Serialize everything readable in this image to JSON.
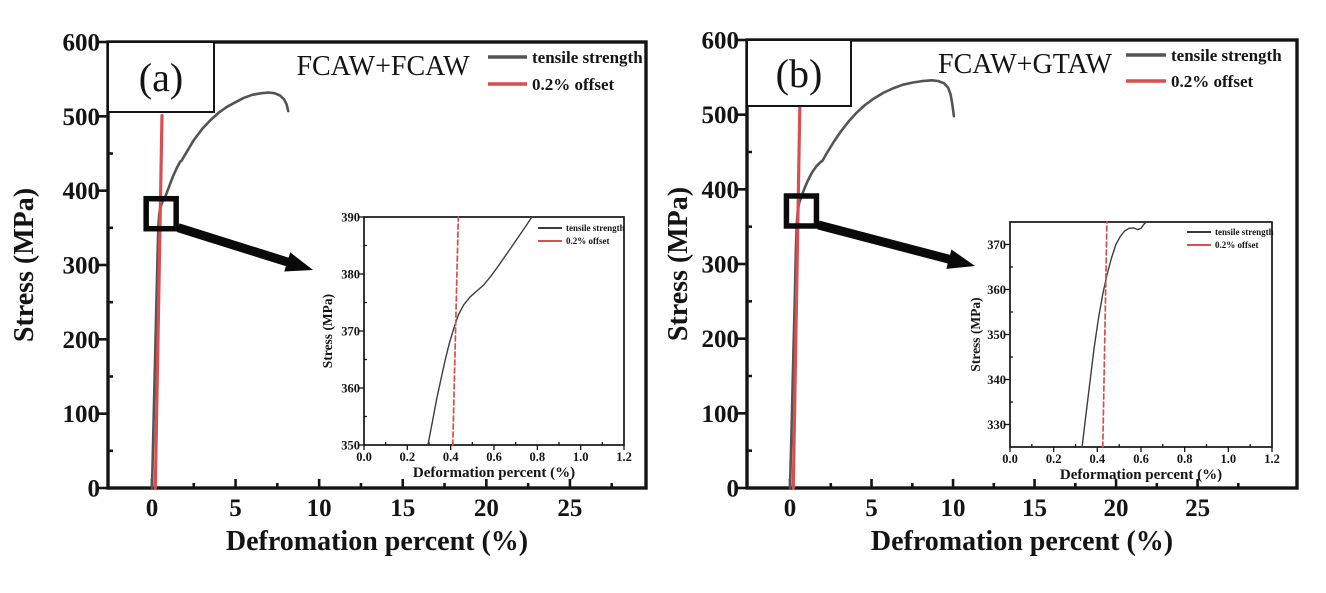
{
  "figure": {
    "background": "#ffffff",
    "axis_color": "#141414",
    "tensile_color": "#545456",
    "offset_color": "#d94f4f"
  },
  "chart_data": [
    {
      "type": "line",
      "panel_label": "(a)",
      "title": "FCAW+FCAW",
      "legend": {
        "position": "top-right",
        "entries": [
          {
            "label": "tensile strength",
            "color": "#545456"
          },
          {
            "label": "0.2% offset",
            "color": "#d94f4f"
          }
        ]
      },
      "main": {
        "xlabel": "Defromation percent (%)",
        "ylabel": "Stress (MPa)",
        "xlim": [
          -2.63,
          29.55
        ],
        "ylim": [
          0,
          600
        ],
        "grid": false,
        "xticks": {
          "values": [
            0,
            5,
            10,
            15,
            20,
            25
          ],
          "labels": [
            "0",
            "5",
            "10",
            "15",
            "20",
            "25"
          ],
          "minor": [
            2.5,
            7.5,
            12.5,
            17.5,
            22.5,
            27.5
          ]
        },
        "yticks": {
          "values": [
            0,
            100,
            200,
            300,
            400,
            500,
            600
          ],
          "labels": [
            "0",
            "100",
            "200",
            "300",
            "400",
            "500",
            "600"
          ],
          "minor": [
            50,
            150,
            250,
            350,
            450,
            550
          ]
        },
        "series": [
          {
            "name": "tensile strength",
            "color": "#545456",
            "style": "solid",
            "points": [
              [
                0,
                0
              ],
              [
                0.09,
                85
              ],
              [
                0.18,
                170
              ],
              [
                0.27,
                255
              ],
              [
                0.33,
                310
              ],
              [
                0.38,
                350
              ],
              [
                0.43,
                368
              ],
              [
                0.5,
                377
              ],
              [
                0.62,
                385
              ],
              [
                0.78,
                391
              ],
              [
                1.0,
                404
              ],
              [
                1.25,
                419
              ],
              [
                1.5,
                431
              ],
              [
                1.68,
                439
              ],
              [
                1.76,
                440
              ],
              [
                2.1,
                453
              ],
              [
                2.5,
                468
              ],
              [
                3.0,
                483
              ],
              [
                3.5,
                495
              ],
              [
                4.0,
                505
              ],
              [
                4.5,
                513
              ],
              [
                5.0,
                519
              ],
              [
                5.5,
                525
              ],
              [
                6.0,
                529
              ],
              [
                6.5,
                531
              ],
              [
                7.0,
                532
              ],
              [
                7.35,
                531
              ],
              [
                7.65,
                528
              ],
              [
                7.9,
                523
              ],
              [
                8.05,
                516
              ],
              [
                8.15,
                507
              ]
            ]
          },
          {
            "name": "0.2% offset",
            "color": "#d94f4f",
            "style": "solid",
            "points": [
              [
                0.2,
                0
              ],
              [
                0.6,
                501
              ]
            ]
          }
        ],
        "zoom_box": {
          "x": 0.55,
          "y": 369
        }
      },
      "inset": {
        "xlabel": "Deformation percent (%)",
        "ylabel": "Stress (MPa)",
        "xlim": [
          0,
          1.2
        ],
        "ylim": [
          350,
          390
        ],
        "xticks": {
          "values": [
            0,
            0.2,
            0.4,
            0.6,
            0.8,
            1.0,
            1.2
          ],
          "labels": [
            "0.0",
            "0.2",
            "0.4",
            "0.6",
            "0.8",
            "1.0",
            "1.2"
          ],
          "minor": [
            0.1,
            0.3,
            0.5,
            0.7,
            0.9,
            1.1
          ]
        },
        "yticks": {
          "values": [
            350,
            360,
            370,
            380,
            390
          ],
          "labels": [
            "350",
            "360",
            "370",
            "380",
            "390"
          ],
          "minor": [
            355,
            365,
            375,
            385
          ]
        },
        "legend": {
          "entries": [
            {
              "label": "tensile strength",
              "color": "#3d3d3d"
            },
            {
              "label": "0.2% offset",
              "color": "#d94f4f"
            }
          ]
        },
        "series": [
          {
            "name": "tensile strength",
            "color": "#3d3d3d",
            "style": "solid",
            "points": [
              [
                0.295,
                350
              ],
              [
                0.315,
                354
              ],
              [
                0.335,
                358
              ],
              [
                0.355,
                361.5
              ],
              [
                0.375,
                365
              ],
              [
                0.395,
                368
              ],
              [
                0.415,
                370.5
              ],
              [
                0.435,
                372.8
              ],
              [
                0.46,
                374.6
              ],
              [
                0.49,
                376
              ],
              [
                0.52,
                377
              ],
              [
                0.55,
                378
              ],
              [
                0.585,
                379.6
              ],
              [
                0.62,
                381.4
              ],
              [
                0.66,
                383.6
              ],
              [
                0.7,
                385.8
              ],
              [
                0.74,
                388
              ],
              [
                0.775,
                390
              ]
            ]
          },
          {
            "name": "0.2% offset",
            "color": "#d94f4f",
            "style": "dashed",
            "points": [
              [
                0.41,
                350
              ],
              [
                0.435,
                390
              ]
            ]
          }
        ]
      }
    },
    {
      "type": "line",
      "panel_label": "(b)",
      "title": "FCAW+GTAW",
      "legend": {
        "position": "top-right",
        "entries": [
          {
            "label": "tensile strength",
            "color": "#545456"
          },
          {
            "label": "0.2% offset",
            "color": "#d94f4f"
          }
        ]
      },
      "main": {
        "xlabel": "Defromation percent (%)",
        "ylabel": "Stress (MPa)",
        "xlim": [
          -2.64,
          31.1
        ],
        "ylim": [
          0,
          600
        ],
        "grid": false,
        "xticks": {
          "values": [
            0,
            5,
            10,
            15,
            20,
            25
          ],
          "labels": [
            "0",
            "5",
            "10",
            "15",
            "20",
            "25"
          ],
          "minor": [
            2.5,
            7.5,
            12.5,
            17.5,
            22.5,
            27.5
          ]
        },
        "yticks": {
          "values": [
            0,
            100,
            200,
            300,
            400,
            500,
            600
          ],
          "labels": [
            "0",
            "100",
            "200",
            "300",
            "400",
            "500",
            "600"
          ],
          "minor": [
            50,
            150,
            250,
            350,
            450,
            550
          ]
        },
        "series": [
          {
            "name": "tensile strength",
            "color": "#545456",
            "style": "solid",
            "points": [
              [
                0,
                0
              ],
              [
                0.09,
                75
              ],
              [
                0.19,
                165
              ],
              [
                0.29,
                255
              ],
              [
                0.36,
                320
              ],
              [
                0.42,
                357
              ],
              [
                0.48,
                373
              ],
              [
                0.56,
                382
              ],
              [
                0.72,
                392
              ],
              [
                0.92,
                403
              ],
              [
                1.12,
                413
              ],
              [
                1.36,
                423
              ],
              [
                1.62,
                431
              ],
              [
                1.9,
                437
              ],
              [
                1.98,
                438
              ],
              [
                2.3,
                450
              ],
              [
                2.7,
                464
              ],
              [
                3.1,
                477
              ],
              [
                3.6,
                491
              ],
              [
                4.1,
                503
              ],
              [
                4.6,
                513
              ],
              [
                5.1,
                521
              ],
              [
                5.7,
                529
              ],
              [
                6.3,
                535
              ],
              [
                6.9,
                540
              ],
              [
                7.5,
                543
              ],
              [
                8.1,
                545
              ],
              [
                8.7,
                546
              ],
              [
                9.1,
                545
              ],
              [
                9.45,
                542
              ],
              [
                9.7,
                536
              ],
              [
                9.85,
                527
              ],
              [
                9.95,
                515
              ],
              [
                10.05,
                498
              ]
            ]
          },
          {
            "name": "0.2% offset",
            "color": "#d94f4f",
            "style": "solid",
            "points": [
              [
                0.2,
                0
              ],
              [
                0.6,
                510
              ]
            ]
          }
        ],
        "zoom_box": {
          "x": 0.7,
          "y": 371
        }
      },
      "inset": {
        "xlabel": "Deformation percent (%)",
        "ylabel": "Stress (MPa)",
        "xlim": [
          0,
          1.2
        ],
        "ylim": [
          325,
          375
        ],
        "xticks": {
          "values": [
            0,
            0.2,
            0.4,
            0.6,
            0.8,
            1.0,
            1.2
          ],
          "labels": [
            "0.0",
            "0.2",
            "0.4",
            "0.6",
            "0.8",
            "1.0",
            "1.2"
          ],
          "minor": [
            0.1,
            0.3,
            0.5,
            0.7,
            0.9,
            1.1
          ]
        },
        "yticks": {
          "values": [
            330,
            340,
            350,
            360,
            370
          ],
          "labels": [
            "330",
            "340",
            "350",
            "360",
            "370"
          ],
          "minor": [
            335,
            345,
            355,
            365
          ]
        },
        "legend": {
          "entries": [
            {
              "label": "tensile strength",
              "color": "#3d3d3d"
            },
            {
              "label": "0.2% offset",
              "color": "#d94f4f"
            }
          ]
        },
        "series": [
          {
            "name": "tensile strength",
            "color": "#3d3d3d",
            "style": "solid",
            "points": [
              [
                0.33,
                325
              ],
              [
                0.345,
                331
              ],
              [
                0.365,
                339
              ],
              [
                0.385,
                347
              ],
              [
                0.405,
                353.5
              ],
              [
                0.425,
                359
              ],
              [
                0.445,
                363.5
              ],
              [
                0.465,
                367
              ],
              [
                0.485,
                370
              ],
              [
                0.505,
                371.8
              ],
              [
                0.525,
                373
              ],
              [
                0.545,
                373.6
              ],
              [
                0.565,
                373.7
              ],
              [
                0.585,
                373.3
              ],
              [
                0.6,
                373.6
              ],
              [
                0.615,
                374.6
              ],
              [
                0.625,
                375
              ]
            ]
          },
          {
            "name": "0.2% offset",
            "color": "#d94f4f",
            "style": "dashed",
            "points": [
              [
                0.425,
                325
              ],
              [
                0.444,
                375
              ]
            ]
          }
        ]
      }
    }
  ]
}
